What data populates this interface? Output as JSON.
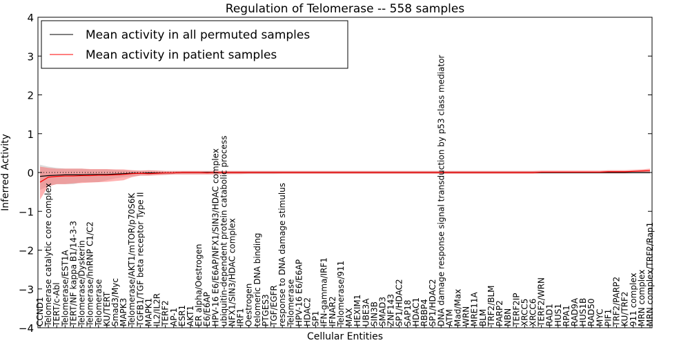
{
  "chart_data": {
    "type": "line",
    "title": "Regulation of Telomerase -- 558 samples",
    "xlabel": "Cellular Entities",
    "ylabel": "Inferred Activity",
    "ylim": [
      -4,
      4
    ],
    "yticks": [
      -4,
      -3,
      -2,
      -1,
      0,
      1,
      2,
      3,
      4
    ],
    "ytick_labels": [
      "−4",
      "−3",
      "−2",
      "−1",
      "0",
      "1",
      "2",
      "3",
      "4"
    ],
    "legend": {
      "placement": "top-left",
      "entries": [
        {
          "label": "Mean activity in all permuted samples",
          "color": "#000000"
        },
        {
          "label": "Mean activity in patient samples",
          "color": "#ff0000"
        }
      ]
    },
    "categories": [
      "CCND1",
      "Telomerase catalytic core complex",
      "TERT/c-Abl",
      "Telomerase/EST1A",
      "TERT/NF kappa B1/14-3-3",
      "Telomerase/Dyskerin",
      "Telomerase/hnRNP C1/C2",
      "Telomerase",
      "KU/TERT",
      "Smad3/Myc",
      "MAPK3",
      "Telomerase/AKT1/mTOR/p70S6K",
      "TGFB1/TGF beta receptor Type II",
      "MAPK1",
      "IL2/IL2R",
      "TERF2",
      "AP-1",
      "ESR1",
      "AKT1",
      "ER alpha/Oestrogen",
      "E6/E6AP",
      "HPV-16 E6/E6AP/NFX1/SIN3/HDAC complex",
      "ubiquitin-dependent protein catabolic process",
      "NFX1/SIN3/HDAC complex",
      "IRF1",
      "Oestrogen",
      "telomeric DNA binding",
      "PTGES3",
      "TGF/EGFR",
      "response to DNA damage stimulus",
      "Telomerase",
      "HPV-16 E6/E6AP",
      "HDAC2",
      "SP1",
      "IFN-gamma/IRF1",
      "IFNAR2",
      "Telomerase/911",
      "MAX",
      "HEXIM1",
      "UBE3A",
      "SIN3B",
      "SMAD3",
      "ZNF143",
      "SP1/HDAC2",
      "SAP18",
      "HDAC1",
      "RBBP4",
      "SP1/HDAC2",
      "DNA damage response signal transduction by p53 class mediator",
      "ATM",
      "Mad/Max",
      "WRN",
      "MRE11A",
      "BLM",
      "TRF2/BLM",
      "PARP2",
      "NBN",
      "TERF2IP",
      "XRCC5",
      "XRCC6",
      "TERF2/WRN",
      "RAD1",
      "HUS1",
      "RPA1",
      "RAD9A",
      "HUS1B",
      "RAD50",
      "MYC",
      "PIF1",
      "TRF2/PARP2",
      "KU/TRF2",
      "911 complex",
      "MRN complex",
      "MRN complex/TRF2/Rap1"
    ],
    "series": [
      {
        "name": "Mean activity in all permuted samples",
        "color": "#000000",
        "values": [
          -0.1,
          -0.08,
          -0.07,
          -0.06,
          -0.06,
          -0.06,
          -0.05,
          -0.05,
          -0.05,
          -0.04,
          -0.03,
          -0.02,
          -0.02,
          -0.01,
          -0.01,
          -0.01,
          -0.01,
          0.0,
          0.0,
          0.0,
          0.0,
          0.0,
          0.0,
          0.0,
          0.0,
          0.0,
          0.0,
          0.0,
          0.0,
          0.0,
          0.0,
          0.0,
          0.0,
          0.0,
          0.0,
          0.0,
          0.0,
          0.0,
          0.0,
          0.0,
          0.0,
          0.0,
          0.0,
          0.0,
          0.0,
          0.0,
          0.0,
          0.0,
          0.0,
          0.0,
          0.0,
          0.0,
          0.0,
          0.0,
          0.0,
          0.0,
          0.0,
          0.0,
          0.0,
          0.0,
          0.0,
          0.0,
          0.0,
          0.0,
          0.0,
          0.0,
          0.0,
          0.0,
          0.0,
          0.0,
          0.0,
          0.0,
          0.0,
          0.0
        ],
        "lower": [
          -0.45,
          -0.35,
          -0.3,
          -0.3,
          -0.3,
          -0.25,
          -0.25,
          -0.25,
          -0.2,
          -0.15,
          -0.12,
          -0.1,
          -0.08,
          -0.08,
          -0.06,
          -0.06,
          -0.05,
          -0.05,
          -0.05,
          -0.05,
          -0.05,
          -0.05,
          -0.05,
          -0.04,
          -0.04,
          -0.04,
          -0.04,
          -0.04,
          -0.04,
          -0.03,
          -0.03,
          -0.03,
          -0.03,
          -0.03,
          -0.03,
          -0.03,
          -0.03,
          -0.03,
          -0.03,
          -0.03,
          -0.03,
          -0.03,
          -0.03,
          -0.03,
          -0.03,
          -0.03,
          -0.03,
          -0.03,
          -0.03,
          -0.03,
          -0.03,
          -0.03,
          -0.03,
          -0.03,
          -0.03,
          -0.03,
          -0.03,
          -0.03,
          -0.03,
          -0.03,
          -0.03,
          -0.03,
          -0.03,
          -0.03,
          -0.03,
          -0.03,
          -0.03,
          -0.03,
          -0.03,
          -0.03,
          -0.03,
          -0.03,
          -0.03,
          -0.03
        ],
        "upper": [
          0.2,
          0.15,
          0.12,
          0.1,
          0.1,
          0.1,
          0.08,
          0.08,
          0.08,
          0.07,
          0.06,
          0.05,
          0.05,
          0.05,
          0.05,
          0.04,
          0.04,
          0.04,
          0.04,
          0.04,
          0.04,
          0.04,
          0.04,
          0.04,
          0.04,
          0.04,
          0.04,
          0.04,
          0.04,
          0.04,
          0.04,
          0.04,
          0.04,
          0.04,
          0.04,
          0.04,
          0.04,
          0.04,
          0.04,
          0.04,
          0.04,
          0.04,
          0.04,
          0.04,
          0.04,
          0.04,
          0.04,
          0.04,
          0.04,
          0.04,
          0.04,
          0.04,
          0.04,
          0.04,
          0.04,
          0.04,
          0.04,
          0.04,
          0.04,
          0.04,
          0.04,
          0.04,
          0.04,
          0.04,
          0.04,
          0.04,
          0.04,
          0.04,
          0.04,
          0.04,
          0.04,
          0.04,
          0.04,
          0.04
        ]
      },
      {
        "name": "Mean activity in patient samples",
        "color": "#ff0000",
        "values": [
          -0.25,
          -0.12,
          -0.1,
          -0.09,
          -0.09,
          -0.08,
          -0.08,
          -0.07,
          -0.07,
          -0.06,
          -0.05,
          -0.03,
          -0.02,
          -0.03,
          -0.02,
          -0.01,
          -0.01,
          0.0,
          0.0,
          0.0,
          -0.01,
          0.0,
          0.0,
          0.0,
          0.0,
          0.0,
          0.0,
          0.0,
          0.0,
          0.0,
          0.0,
          0.0,
          0.0,
          0.0,
          0.0,
          0.0,
          0.0,
          0.0,
          0.0,
          0.0,
          0.0,
          0.0,
          0.0,
          0.0,
          0.0,
          0.0,
          0.0,
          0.0,
          0.0,
          0.0,
          0.0,
          0.0,
          0.0,
          0.0,
          0.0,
          0.0,
          0.0,
          0.0,
          0.0,
          0.0,
          0.01,
          0.01,
          0.01,
          0.01,
          0.01,
          0.01,
          0.01,
          0.01,
          0.02,
          0.02,
          0.02,
          0.03,
          0.04,
          0.05
        ],
        "lower": [
          -0.7,
          -0.35,
          -0.3,
          -0.3,
          -0.28,
          -0.27,
          -0.26,
          -0.25,
          -0.24,
          -0.22,
          -0.2,
          -0.12,
          -0.08,
          -0.08,
          -0.07,
          -0.06,
          -0.05,
          -0.05,
          -0.05,
          -0.05,
          -0.05,
          -0.05,
          -0.04,
          -0.04,
          -0.04,
          -0.03,
          -0.03,
          -0.03,
          -0.03,
          -0.03,
          -0.03,
          -0.03,
          -0.03,
          -0.03,
          -0.03,
          -0.03,
          -0.03,
          -0.03,
          -0.03,
          -0.03,
          -0.03,
          -0.03,
          -0.03,
          -0.03,
          -0.03,
          -0.03,
          -0.03,
          -0.03,
          -0.03,
          -0.03,
          -0.03,
          -0.03,
          -0.03,
          -0.03,
          -0.03,
          -0.03,
          -0.03,
          -0.03,
          -0.03,
          -0.03,
          -0.02,
          -0.02,
          -0.02,
          -0.02,
          -0.02,
          -0.02,
          -0.02,
          -0.02,
          -0.02,
          -0.02,
          -0.02,
          -0.01,
          0.0,
          0.0
        ],
        "upper": [
          0.15,
          0.12,
          0.1,
          0.1,
          0.1,
          0.1,
          0.09,
          0.09,
          0.09,
          0.08,
          0.08,
          0.06,
          0.05,
          0.06,
          0.05,
          0.04,
          0.04,
          0.04,
          0.04,
          0.04,
          0.04,
          0.04,
          0.04,
          0.04,
          0.04,
          0.04,
          0.04,
          0.04,
          0.04,
          0.04,
          0.04,
          0.04,
          0.04,
          0.04,
          0.04,
          0.04,
          0.04,
          0.04,
          0.04,
          0.04,
          0.04,
          0.04,
          0.04,
          0.04,
          0.04,
          0.04,
          0.04,
          0.04,
          0.04,
          0.04,
          0.04,
          0.04,
          0.04,
          0.04,
          0.04,
          0.04,
          0.04,
          0.04,
          0.04,
          0.04,
          0.05,
          0.05,
          0.05,
          0.05,
          0.05,
          0.05,
          0.05,
          0.05,
          0.06,
          0.06,
          0.06,
          0.07,
          0.08,
          0.1
        ]
      }
    ]
  }
}
